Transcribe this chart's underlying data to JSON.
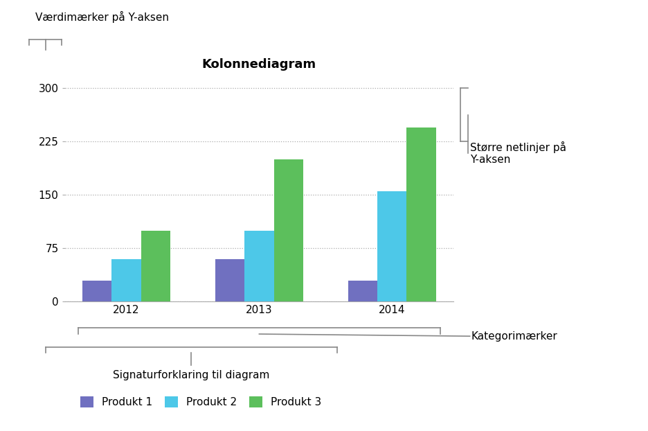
{
  "title": "Kolonnediagram",
  "categories": [
    "2012",
    "2013",
    "2014"
  ],
  "series": [
    {
      "name": "Produkt 1",
      "values": [
        30,
        60,
        30
      ],
      "color": "#7070c0"
    },
    {
      "name": "Produkt 2",
      "values": [
        60,
        100,
        155
      ],
      "color": "#4DC8E8"
    },
    {
      "name": "Produkt 3",
      "values": [
        100,
        200,
        245
      ],
      "color": "#5CBF5C"
    }
  ],
  "yticks": [
    0,
    75,
    150,
    225,
    300
  ],
  "ylim": [
    0,
    315
  ],
  "background_color": "#ffffff",
  "annotation_y_axis_label": "Værdimærker på Y-aksen",
  "annotation_gridlines_label": "Større netlinjer på\nY-aksen",
  "annotation_category_label": "Kategorimærker",
  "annotation_legend_label": "Signaturforklaring til diagram",
  "bar_width": 0.22,
  "title_fontsize": 13,
  "axis_fontsize": 11,
  "legend_fontsize": 11,
  "annotation_fontsize": 11,
  "grid_color": "#aaaaaa",
  "spine_color": "#aaaaaa"
}
